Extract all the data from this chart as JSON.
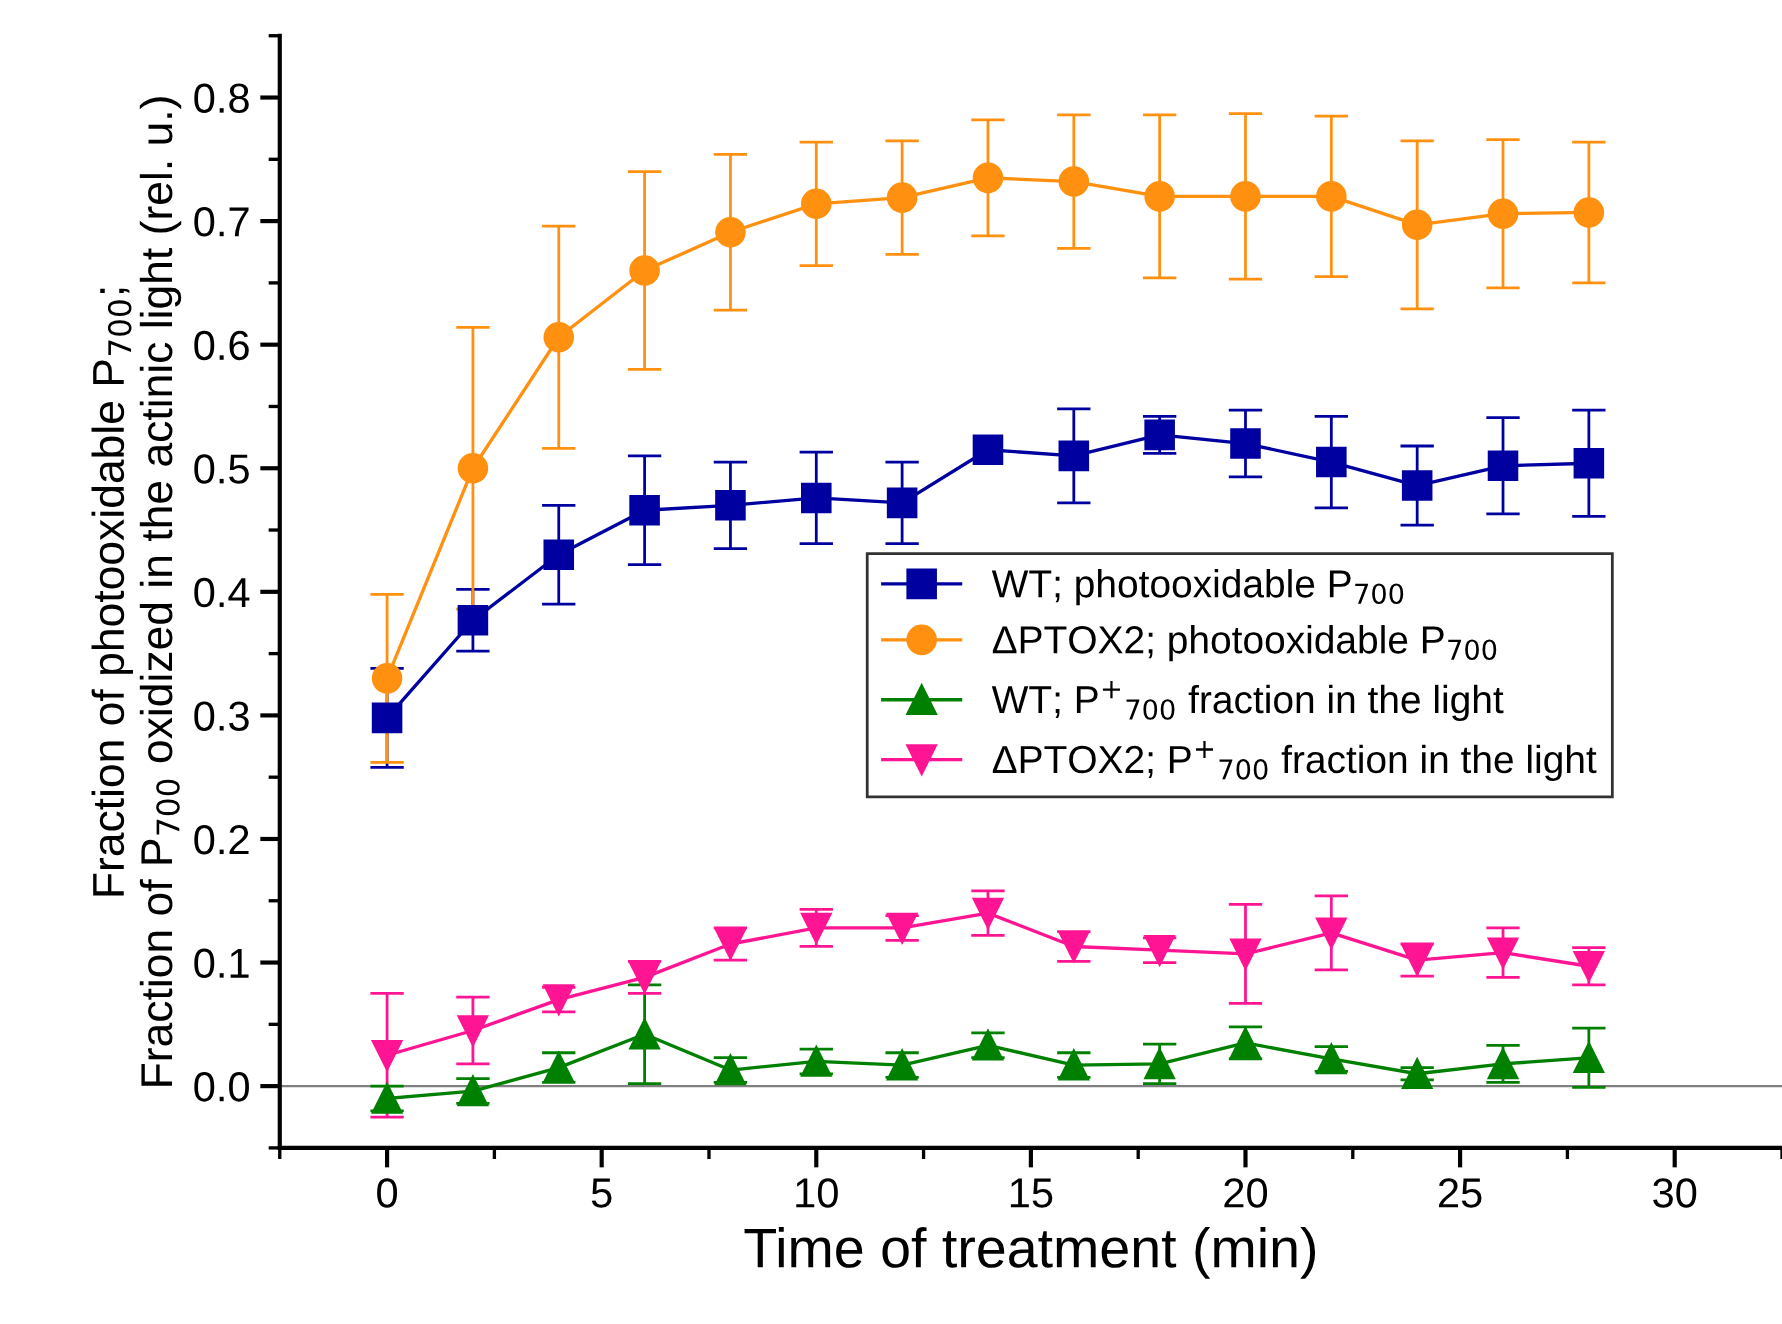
{
  "chart_data": {
    "type": "line",
    "xlabel": "Time of treatment (min)",
    "ylabel": "Fraction of photooxidable P$_{700}$;\nFraction of P$_{700}$ oxidized in the actinic light (rel. u.)",
    "x": [
      0,
      2,
      4,
      6,
      8,
      10,
      12,
      14,
      16,
      18,
      20,
      22,
      24,
      26,
      28
    ],
    "series": [
      {
        "name": "WT; photooxidable P$_{700}$",
        "color": "#0000a0",
        "marker": "square",
        "values": [
          0.298,
          0.377,
          0.43,
          0.466,
          0.47,
          0.476,
          0.472,
          0.515,
          0.51,
          0.527,
          0.52,
          0.505,
          0.486,
          0.502,
          0.504
        ],
        "errors": [
          0.04,
          0.025,
          0.04,
          0.044,
          0.035,
          0.037,
          0.033,
          null,
          0.038,
          0.015,
          0.027,
          0.037,
          0.032,
          0.039,
          0.043
        ]
      },
      {
        "name": "ΔPTOX2; photooxidable P$_{700}$",
        "color": "#ff9010",
        "marker": "circle",
        "values": [
          0.33,
          0.5,
          0.606,
          0.66,
          0.691,
          0.714,
          0.719,
          0.735,
          0.732,
          0.72,
          0.72,
          0.72,
          0.697,
          0.706,
          0.707
        ],
        "errors": [
          0.068,
          0.114,
          0.09,
          0.08,
          0.063,
          0.05,
          0.046,
          0.047,
          0.054,
          0.066,
          0.067,
          0.065,
          0.068,
          0.06,
          0.057
        ]
      },
      {
        "name": "WT; P$^{+}$$_{700}$ fraction in the light",
        "color": "#008000",
        "marker": "triangle",
        "values": [
          -0.01,
          -0.004,
          0.015,
          0.042,
          0.013,
          0.02,
          0.017,
          0.033,
          0.017,
          0.018,
          0.035,
          0.022,
          0.01,
          0.018,
          0.023
        ],
        "errors": [
          0.01,
          0.01,
          0.012,
          0.04,
          0.01,
          0.01,
          0.01,
          0.01,
          0.01,
          0.016,
          0.013,
          0.01,
          0.005,
          0.015,
          0.024
        ]
      },
      {
        "name": "ΔPTOX2; P$^{+}$$_{700}$ fraction in the light",
        "color": "#ff1493",
        "marker": "triangle_down",
        "values": [
          0.025,
          0.045,
          0.07,
          0.088,
          0.115,
          0.128,
          0.128,
          0.14,
          0.113,
          0.11,
          0.107,
          0.124,
          0.102,
          0.108,
          0.097
        ],
        "errors": [
          0.05,
          0.027,
          0.01,
          0.013,
          0.013,
          0.015,
          0.01,
          0.018,
          0.012,
          0.01,
          0.04,
          0.03,
          0.013,
          0.02,
          0.015
        ]
      }
    ],
    "xlim": [
      -2.5,
      32.5
    ],
    "ylim": [
      -0.05,
      0.85
    ],
    "xticks": [
      0,
      5,
      10,
      15,
      20,
      25,
      30
    ],
    "yticks": [
      {
        "value": 0,
        "label": "0.0"
      },
      0.1,
      0.2,
      0.3,
      0.4,
      0.5,
      0.6,
      0.7,
      0.8
    ],
    "ref_lines": [
      {
        "axis": "y",
        "value": 0,
        "color": "#808080"
      }
    ],
    "legend": "center right",
    "grid": false
  }
}
